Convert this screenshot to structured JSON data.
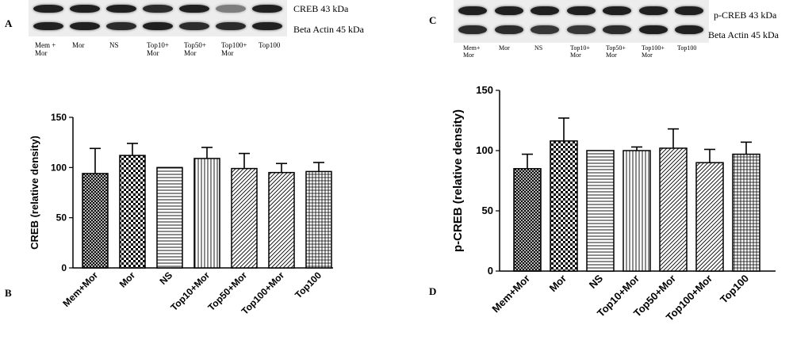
{
  "panels": {
    "a": {
      "letter": "A"
    },
    "b": {
      "letter": "B"
    },
    "c": {
      "letter": "C"
    },
    "d": {
      "letter": "D"
    }
  },
  "blot_left": {
    "top_band_label": "CREB 43 kDa",
    "bottom_band_label": "Beta Actin 45 kDa",
    "lane_labels": [
      "Mem +\nMor",
      "Mor",
      "NS",
      "Top10+\nMor",
      "Top50+\nMor",
      "Top100+\nMor",
      "Top100"
    ],
    "top_band_intensity": [
      0.95,
      0.95,
      0.95,
      0.9,
      0.95,
      0.55,
      0.95
    ],
    "bottom_band_intensity": [
      0.95,
      0.95,
      0.9,
      0.95,
      0.9,
      0.9,
      0.95
    ]
  },
  "blot_right": {
    "top_band_label": "p-CREB 43 kDa",
    "bottom_band_label": "Beta Actin 45 kDa",
    "lane_labels": [
      "Mem+\nMor",
      "Mor",
      "NS",
      "Top10+\nMor",
      "Top50+\nMor",
      "Top100+\nMor",
      "Top100"
    ],
    "top_band_intensity": [
      0.95,
      0.95,
      0.95,
      0.95,
      0.95,
      0.95,
      0.95
    ],
    "bottom_band_intensity": [
      0.9,
      0.9,
      0.85,
      0.85,
      0.9,
      0.95,
      0.95
    ]
  },
  "chart_data": [
    {
      "type": "bar",
      "categories": [
        "Mem+Mor",
        "Mor",
        "NS",
        "Top10+Mor",
        "Top50+Mor",
        "Top100+Mor",
        "Top100"
      ],
      "values": [
        94,
        112,
        100,
        109,
        99,
        95,
        96
      ],
      "errors": [
        25,
        12,
        0,
        11,
        15,
        9,
        9
      ],
      "patterns": [
        "crosshatch",
        "checker",
        "horizontal",
        "vertical",
        "diagonal",
        "diagonal",
        "grid"
      ],
      "ylabel": "CREB (relative density)",
      "xlabel": "",
      "ylim": [
        0,
        150
      ],
      "yticks": [
        0,
        50,
        100,
        150
      ],
      "grid": false
    },
    {
      "type": "bar",
      "categories": [
        "Mem+Mor",
        "Mor",
        "NS",
        "Top10+Mor",
        "Top50+Mor",
        "Top100+Mor",
        "Top100"
      ],
      "values": [
        85,
        108,
        100,
        100,
        102,
        90,
        97
      ],
      "errors": [
        12,
        19,
        0,
        3,
        16,
        11,
        10
      ],
      "patterns": [
        "crosshatch",
        "checker",
        "horizontal",
        "vertical",
        "diagonal",
        "diagonal",
        "grid"
      ],
      "ylabel": "p-CREB (relative density)",
      "xlabel": "",
      "ylim": [
        0,
        150
      ],
      "yticks": [
        0,
        50,
        100,
        150
      ],
      "grid": false
    }
  ]
}
